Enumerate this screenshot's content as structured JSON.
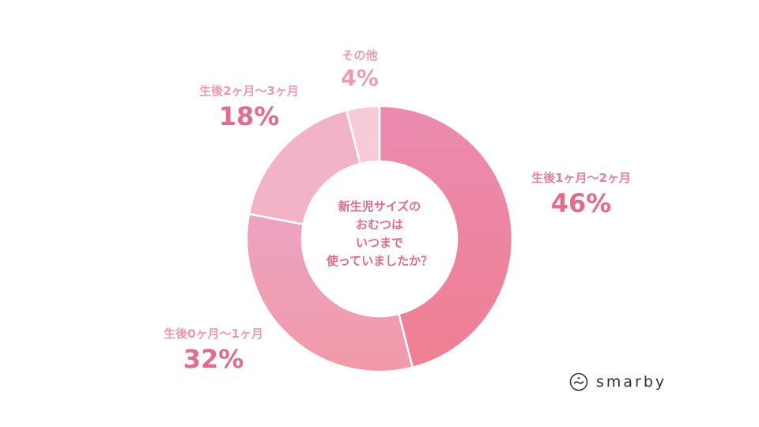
{
  "chart_data": {
    "type": "pie",
    "variant": "donut",
    "center_title_lines": [
      "新生児サイズの",
      "おむつは",
      "いつまで",
      "使っていましたか？"
    ],
    "slices": [
      {
        "label": "生後1ヶ月〜2ヶ月",
        "value": 46,
        "value_label": "46%",
        "color": "#ee839c"
      },
      {
        "label": "生後0ヶ月〜1ヶ月",
        "value": 32,
        "value_label": "32%",
        "color": "#f0a0b4"
      },
      {
        "label": "生後2ヶ月〜3ヶ月",
        "value": 18,
        "value_label": "18%",
        "color": "#f3b3c6"
      },
      {
        "label": "その他",
        "value": 4,
        "value_label": "4%",
        "color": "#f7ccd8"
      }
    ],
    "start_angle_deg": 0,
    "direction": "clockwise"
  },
  "brand": {
    "name": "smarby"
  }
}
